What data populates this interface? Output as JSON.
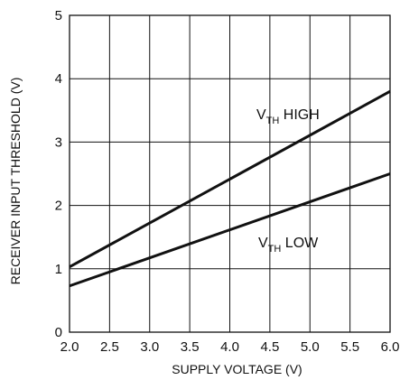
{
  "chart_data": {
    "type": "line",
    "xlabel": "SUPPLY VOLTAGE (V)",
    "ylabel": "RECEIVER INPUT THRESHOLD (V)",
    "xlim": [
      2.0,
      6.0
    ],
    "ylim": [
      0,
      5
    ],
    "x_ticks": [
      "2.0",
      "2.5",
      "3.0",
      "3.5",
      "4.0",
      "4.5",
      "5.0",
      "5.5",
      "6.0"
    ],
    "y_ticks": [
      "0",
      "1",
      "2",
      "3",
      "4",
      "5"
    ],
    "grid": true,
    "series": [
      {
        "name": "HIGH",
        "label_main": "V",
        "label_sub": "TH",
        "label_suffix": " HIGH",
        "x": [
          2.0,
          6.0
        ],
        "y": [
          1.03,
          3.8
        ]
      },
      {
        "name": "LOW",
        "label_main": "V",
        "label_sub": "TH",
        "label_suffix": " LOW",
        "x": [
          2.0,
          6.0
        ],
        "y": [
          0.73,
          2.5
        ]
      }
    ]
  }
}
